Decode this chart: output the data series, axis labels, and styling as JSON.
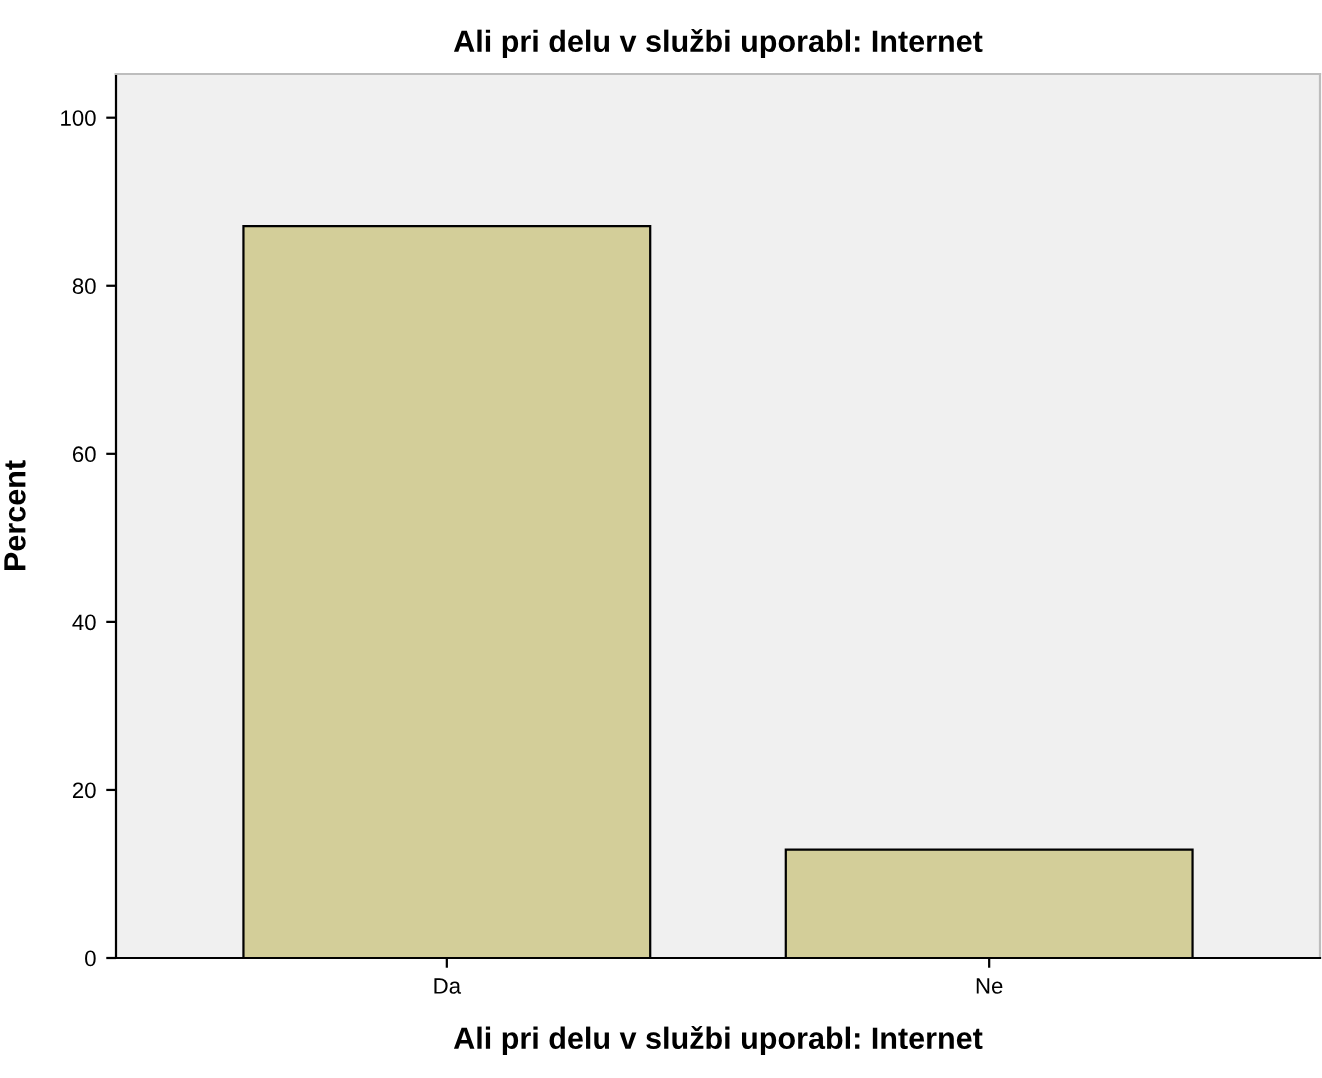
{
  "chart_data": {
    "type": "bar",
    "title": "Ali pri delu v službi uporabl: Internet",
    "xlabel": "Ali pri delu v službi uporabl: Internet",
    "ylabel": "Percent",
    "categories": [
      "Da",
      "Ne"
    ],
    "values": [
      87.1,
      12.9
    ],
    "color": "#d3ce99",
    "ylim": [
      0,
      105.2
    ],
    "yticks": [
      0,
      20,
      40,
      60,
      80,
      100
    ],
    "grid": false
  }
}
